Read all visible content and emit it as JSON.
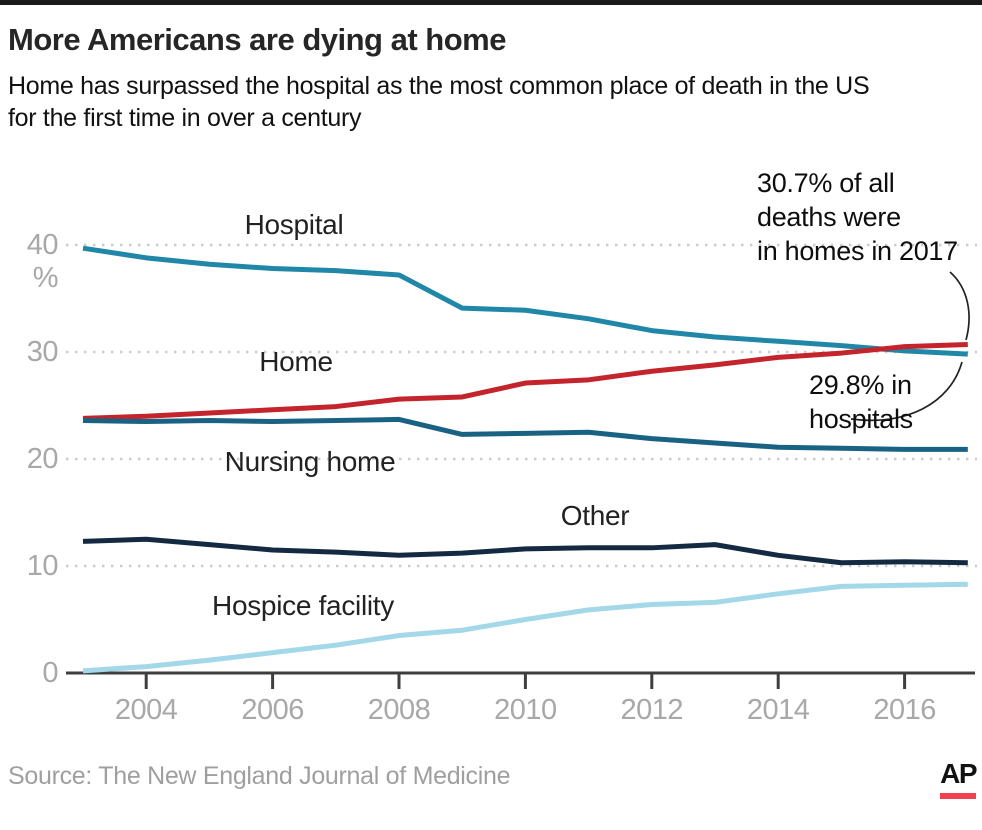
{
  "header": {
    "title": "More Americans are dying at home",
    "subtitle": "Home has surpassed the hospital as the most common place of death in the US\nfor the first time in over a century"
  },
  "chart_data": {
    "type": "line",
    "x": [
      2003,
      2004,
      2005,
      2006,
      2007,
      2008,
      2009,
      2010,
      2011,
      2012,
      2013,
      2014,
      2015,
      2016,
      2017
    ],
    "series": [
      {
        "name": "Hospital",
        "color": "#2187a8",
        "values": [
          39.7,
          38.8,
          38.2,
          37.8,
          37.6,
          37.2,
          34.1,
          33.9,
          33.1,
          32.0,
          31.4,
          31.0,
          30.6,
          30.1,
          29.8
        ]
      },
      {
        "name": "Home",
        "color": "#c4242b",
        "values": [
          23.8,
          24.0,
          24.3,
          24.6,
          24.9,
          25.6,
          25.8,
          27.1,
          27.4,
          28.2,
          28.8,
          29.5,
          29.9,
          30.5,
          30.7
        ]
      },
      {
        "name": "Nursing home",
        "color": "#1a6284",
        "values": [
          23.6,
          23.5,
          23.6,
          23.5,
          23.6,
          23.7,
          22.3,
          22.4,
          22.5,
          21.9,
          21.5,
          21.1,
          21.0,
          20.9,
          20.9
        ]
      },
      {
        "name": "Other",
        "color": "#142a42",
        "values": [
          12.3,
          12.5,
          12.0,
          11.5,
          11.3,
          11.0,
          11.2,
          11.6,
          11.7,
          11.7,
          12.0,
          11.0,
          10.3,
          10.4,
          10.3
        ]
      },
      {
        "name": "Hospice facility",
        "color": "#a3d8e8",
        "values": [
          0.2,
          0.6,
          1.2,
          1.9,
          2.6,
          3.5,
          4.0,
          5.0,
          5.9,
          6.4,
          6.6,
          7.4,
          8.1,
          8.2,
          8.3
        ]
      }
    ],
    "y_ticks": [
      {
        "label": "40 %",
        "value": 40
      },
      {
        "label": "30",
        "value": 30
      },
      {
        "label": "20",
        "value": 20
      },
      {
        "label": "10",
        "value": 10
      },
      {
        "label": "0",
        "value": 0
      }
    ],
    "x_ticks": [
      {
        "label": "2004",
        "year": 2004
      },
      {
        "label": "2006",
        "year": 2006
      },
      {
        "label": "2008",
        "year": 2008
      },
      {
        "label": "2010",
        "year": 2010
      },
      {
        "label": "2012",
        "year": 2012
      },
      {
        "label": "2014",
        "year": 2014
      },
      {
        "label": "2016",
        "year": 2016
      },
      {
        "label": "2016",
        "year": 2016
      }
    ],
    "ylim": [
      0,
      41.5
    ],
    "grid": "dotted horizontal gridlines at 10/20/30/40",
    "legend_position": "inline labels on chart",
    "colors": {
      "gridline": "#cbcbcb",
      "axis": "#3e3e3e",
      "tick_label": "#a8a8a8",
      "ap_red": "#ee4250"
    }
  },
  "annotations": {
    "home_2017": "30.7% of all\ndeaths were\nin homes in 2017",
    "hospital_2017": "29.8% in\nhospitals"
  },
  "footer": {
    "source": "Source: The New England Journal of Medicine",
    "logo": "AP"
  }
}
